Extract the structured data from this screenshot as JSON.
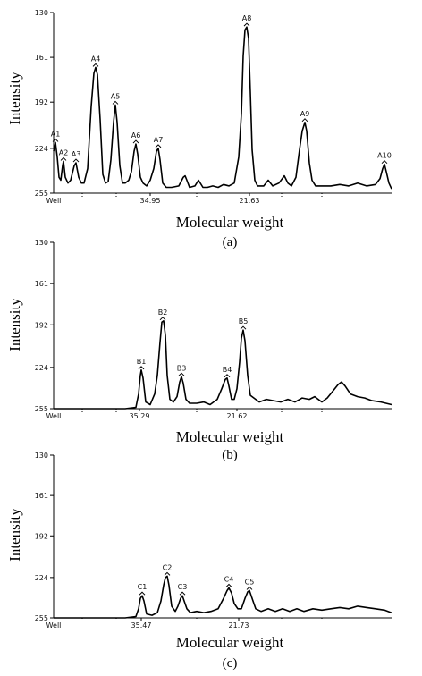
{
  "chart_data": [
    {
      "type": "line",
      "panel_label": "(a)",
      "xlabel": "Molecular weight",
      "ylabel": "Intensity",
      "y_ticks": [
        "130",
        "161",
        "192",
        "224",
        "255"
      ],
      "ylim": [
        255,
        130
      ],
      "x_tick_labels": [
        {
          "label": "Well",
          "x": 0
        },
        {
          "label": "34.95",
          "x": 108
        },
        {
          "label": "21.63",
          "x": 219
        }
      ],
      "xlim": [
        0,
        378
      ],
      "series": [
        {
          "points": [
            [
              0,
              226
            ],
            [
              2,
              220
            ],
            [
              4,
              230
            ],
            [
              6,
              244
            ],
            [
              8,
              246
            ],
            [
              10,
              236
            ],
            [
              11,
              233
            ],
            [
              13,
              244
            ],
            [
              16,
              248
            ],
            [
              19,
              246
            ],
            [
              23,
              236
            ],
            [
              25,
              234
            ],
            [
              28,
              244
            ],
            [
              31,
              248
            ],
            [
              34,
              248
            ],
            [
              38,
              238
            ],
            [
              42,
              195
            ],
            [
              45,
              172
            ],
            [
              47,
              168
            ],
            [
              49,
              173
            ],
            [
              52,
              204
            ],
            [
              55,
              242
            ],
            [
              58,
              248
            ],
            [
              61,
              247
            ],
            [
              64,
              232
            ],
            [
              67,
              206
            ],
            [
              69,
              194
            ],
            [
              71,
              206
            ],
            [
              74,
              236
            ],
            [
              77,
              248
            ],
            [
              80,
              248
            ],
            [
              84,
              246
            ],
            [
              87,
              240
            ],
            [
              90,
              226
            ],
            [
              92,
              221
            ],
            [
              94,
              228
            ],
            [
              97,
              244
            ],
            [
              100,
              248
            ],
            [
              104,
              250
            ],
            [
              108,
              246
            ],
            [
              112,
              238
            ],
            [
              115,
              226
            ],
            [
              117,
              224
            ],
            [
              119,
              232
            ],
            [
              122,
              248
            ],
            [
              126,
              251
            ],
            [
              132,
              251
            ],
            [
              140,
              250
            ],
            [
              145,
              244
            ],
            [
              147,
              243
            ],
            [
              149,
              246
            ],
            [
              152,
              251
            ],
            [
              158,
              250
            ],
            [
              162,
              246
            ],
            [
              167,
              251
            ],
            [
              172,
              251
            ],
            [
              178,
              250
            ],
            [
              184,
              251
            ],
            [
              190,
              249
            ],
            [
              196,
              250
            ],
            [
              202,
              248
            ],
            [
              207,
              230
            ],
            [
              210,
              200
            ],
            [
              212,
              160
            ],
            [
              214,
              142
            ],
            [
              216,
              140
            ],
            [
              218,
              148
            ],
            [
              220,
              185
            ],
            [
              222,
              225
            ],
            [
              225,
              246
            ],
            [
              228,
              250
            ],
            [
              235,
              250
            ],
            [
              240,
              246
            ],
            [
              245,
              250
            ],
            [
              252,
              248
            ],
            [
              258,
              243
            ],
            [
              262,
              248
            ],
            [
              266,
              250
            ],
            [
              271,
              244
            ],
            [
              275,
              225
            ],
            [
              278,
              212
            ],
            [
              281,
              206
            ],
            [
              283,
              212
            ],
            [
              286,
              234
            ],
            [
              289,
              246
            ],
            [
              293,
              250
            ],
            [
              300,
              250
            ],
            [
              310,
              250
            ],
            [
              320,
              249
            ],
            [
              330,
              250
            ],
            [
              340,
              248
            ],
            [
              350,
              250
            ],
            [
              360,
              249
            ],
            [
              365,
              245
            ],
            [
              368,
              238
            ],
            [
              370,
              235
            ],
            [
              372,
              240
            ],
            [
              375,
              248
            ],
            [
              378,
              252
            ]
          ]
        }
      ],
      "peaks": [
        {
          "label": "A1",
          "x": 2,
          "y": 220
        },
        {
          "label": "A2",
          "x": 11,
          "y": 233
        },
        {
          "label": "A3",
          "x": 25,
          "y": 234
        },
        {
          "label": "A4",
          "x": 47,
          "y": 168
        },
        {
          "label": "A5",
          "x": 69,
          "y": 194
        },
        {
          "label": "A6",
          "x": 92,
          "y": 221
        },
        {
          "label": "A7",
          "x": 117,
          "y": 224
        },
        {
          "label": "A8",
          "x": 216,
          "y": 140
        },
        {
          "label": "A9",
          "x": 281,
          "y": 206
        },
        {
          "label": "A10",
          "x": 370,
          "y": 235
        }
      ]
    },
    {
      "type": "line",
      "panel_label": "(b)",
      "xlabel": "Molecular weight",
      "ylabel": "Intensity",
      "y_ticks": [
        "130",
        "161",
        "192",
        "224",
        "255"
      ],
      "ylim": [
        255,
        130
      ],
      "x_tick_labels": [
        {
          "label": "Well",
          "x": 0
        },
        {
          "label": "35.29",
          "x": 96
        },
        {
          "label": "21.62",
          "x": 205
        }
      ],
      "xlim": [
        0,
        378
      ],
      "series": [
        {
          "points": [
            [
              0,
              255
            ],
            [
              40,
              255
            ],
            [
              80,
              255
            ],
            [
              92,
              254
            ],
            [
              95,
              244
            ],
            [
              97,
              230
            ],
            [
              98,
              226
            ],
            [
              100,
              232
            ],
            [
              103,
              250
            ],
            [
              108,
              252
            ],
            [
              113,
              244
            ],
            [
              116,
              230
            ],
            [
              119,
              205
            ],
            [
              121,
              190
            ],
            [
              123,
              189
            ],
            [
              125,
              200
            ],
            [
              127,
              230
            ],
            [
              130,
              248
            ],
            [
              134,
              250
            ],
            [
              138,
              246
            ],
            [
              141,
              235
            ],
            [
              143,
              231
            ],
            [
              145,
              236
            ],
            [
              148,
              248
            ],
            [
              152,
              251
            ],
            [
              160,
              251
            ],
            [
              168,
              250
            ],
            [
              175,
              252
            ],
            [
              183,
              248
            ],
            [
              188,
              240
            ],
            [
              192,
              233
            ],
            [
              194,
              232
            ],
            [
              196,
              238
            ],
            [
              199,
              248
            ],
            [
              202,
              248
            ],
            [
              205,
              240
            ],
            [
              208,
              220
            ],
            [
              210,
              202
            ],
            [
              212,
              196
            ],
            [
              214,
              204
            ],
            [
              217,
              230
            ],
            [
              220,
              245
            ],
            [
              224,
              247
            ],
            [
              230,
              250
            ],
            [
              238,
              248
            ],
            [
              246,
              249
            ],
            [
              254,
              250
            ],
            [
              262,
              248
            ],
            [
              270,
              250
            ],
            [
              278,
              247
            ],
            [
              286,
              248
            ],
            [
              292,
              246
            ],
            [
              300,
              250
            ],
            [
              306,
              247
            ],
            [
              312,
              242
            ],
            [
              318,
              237
            ],
            [
              322,
              235
            ],
            [
              326,
              238
            ],
            [
              332,
              244
            ],
            [
              340,
              246
            ],
            [
              348,
              247
            ],
            [
              356,
              249
            ],
            [
              366,
              250
            ],
            [
              378,
              252
            ]
          ]
        }
      ],
      "peaks": [
        {
          "label": "B1",
          "x": 98,
          "y": 226
        },
        {
          "label": "B2",
          "x": 122,
          "y": 189
        },
        {
          "label": "B3",
          "x": 143,
          "y": 231
        },
        {
          "label": "B4",
          "x": 194,
          "y": 232
        },
        {
          "label": "B5",
          "x": 212,
          "y": 196
        }
      ]
    },
    {
      "type": "line",
      "panel_label": "(c)",
      "xlabel": "Molecular weight",
      "ylabel": "Intensity",
      "y_ticks": [
        "130",
        "161",
        "192",
        "224",
        "255"
      ],
      "ylim": [
        255,
        130
      ],
      "x_tick_labels": [
        {
          "label": "Well",
          "x": 0
        },
        {
          "label": "35.47",
          "x": 98
        },
        {
          "label": "21.73",
          "x": 207
        }
      ],
      "xlim": [
        0,
        378
      ],
      "series": [
        {
          "points": [
            [
              0,
              255
            ],
            [
              40,
              255
            ],
            [
              80,
              255
            ],
            [
              92,
              254
            ],
            [
              95,
              248
            ],
            [
              97,
              240
            ],
            [
              99,
              238
            ],
            [
              101,
              242
            ],
            [
              104,
              252
            ],
            [
              110,
              253
            ],
            [
              116,
              251
            ],
            [
              120,
              242
            ],
            [
              123,
              230
            ],
            [
              125,
              224
            ],
            [
              127,
              223
            ],
            [
              129,
              230
            ],
            [
              132,
              246
            ],
            [
              136,
              250
            ],
            [
              139,
              246
            ],
            [
              142,
              240
            ],
            [
              144,
              238
            ],
            [
              146,
              242
            ],
            [
              149,
              248
            ],
            [
              153,
              251
            ],
            [
              160,
              250
            ],
            [
              168,
              251
            ],
            [
              176,
              250
            ],
            [
              184,
              248
            ],
            [
              190,
              240
            ],
            [
              194,
              234
            ],
            [
              196,
              232
            ],
            [
              199,
              236
            ],
            [
              202,
              244
            ],
            [
              206,
              248
            ],
            [
              210,
              248
            ],
            [
              214,
              240
            ],
            [
              217,
              235
            ],
            [
              219,
              234
            ],
            [
              222,
              240
            ],
            [
              226,
              248
            ],
            [
              232,
              250
            ],
            [
              240,
              248
            ],
            [
              248,
              250
            ],
            [
              256,
              248
            ],
            [
              264,
              250
            ],
            [
              272,
              248
            ],
            [
              280,
              250
            ],
            [
              290,
              248
            ],
            [
              300,
              249
            ],
            [
              310,
              248
            ],
            [
              320,
              247
            ],
            [
              330,
              248
            ],
            [
              340,
              246
            ],
            [
              350,
              247
            ],
            [
              360,
              248
            ],
            [
              370,
              249
            ],
            [
              378,
              251
            ]
          ]
        }
      ],
      "peaks": [
        {
          "label": "C1",
          "x": 99,
          "y": 238
        },
        {
          "label": "C2",
          "x": 127,
          "y": 223
        },
        {
          "label": "C3",
          "x": 144,
          "y": 238
        },
        {
          "label": "C4",
          "x": 196,
          "y": 232
        },
        {
          "label": "C5",
          "x": 219,
          "y": 234
        }
      ]
    }
  ]
}
